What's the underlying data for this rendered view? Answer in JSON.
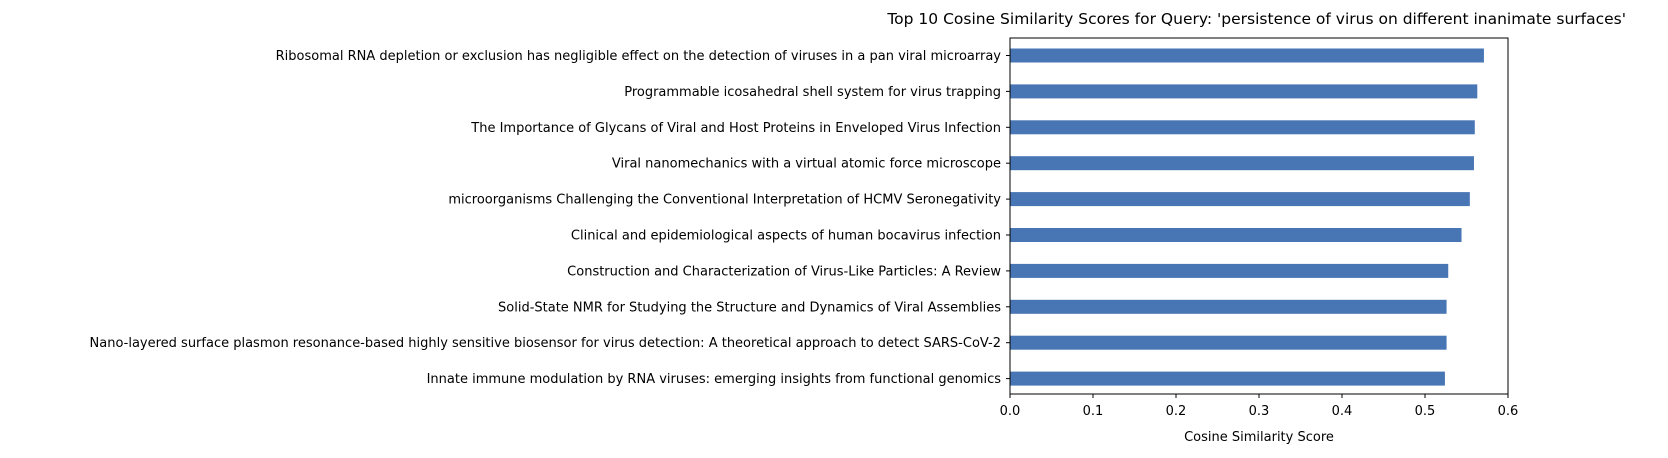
{
  "chart_data": {
    "type": "bar",
    "orientation": "horizontal",
    "title": "Top 10 Cosine Similarity Scores for Query: 'persistence of virus on different inanimate surfaces'",
    "xlabel": "Cosine Similarity Score",
    "ylabel": "",
    "xlim": [
      0,
      0.6
    ],
    "xticks": [
      "0.0",
      "0.1",
      "0.2",
      "0.3",
      "0.4",
      "0.5",
      "0.6"
    ],
    "grid": false,
    "bar_color": "#4876b4",
    "categories": [
      "Ribosomal RNA depletion or exclusion has negligible effect on the detection of viruses in a pan viral microarray",
      "Programmable icosahedral shell system for virus trapping",
      "The Importance of Glycans of Viral and Host Proteins in Enveloped Virus Infection",
      "Viral nanomechanics with a virtual atomic force microscope",
      "microorganisms Challenging the Conventional Interpretation of HCMV Seronegativity",
      "Clinical and epidemiological aspects of human bocavirus infection",
      "Construction and Characterization of Virus-Like Particles: A Review",
      "Solid-State NMR for Studying the Structure and Dynamics of Viral Assemblies",
      "Nano-layered surface plasmon resonance-based highly sensitive biosensor for virus detection: A theoretical approach to detect SARS-CoV-2",
      "Innate immune modulation by RNA viruses: emerging insights from functional genomics"
    ],
    "values": [
      0.571,
      0.563,
      0.56,
      0.559,
      0.554,
      0.544,
      0.528,
      0.526,
      0.526,
      0.524
    ]
  }
}
